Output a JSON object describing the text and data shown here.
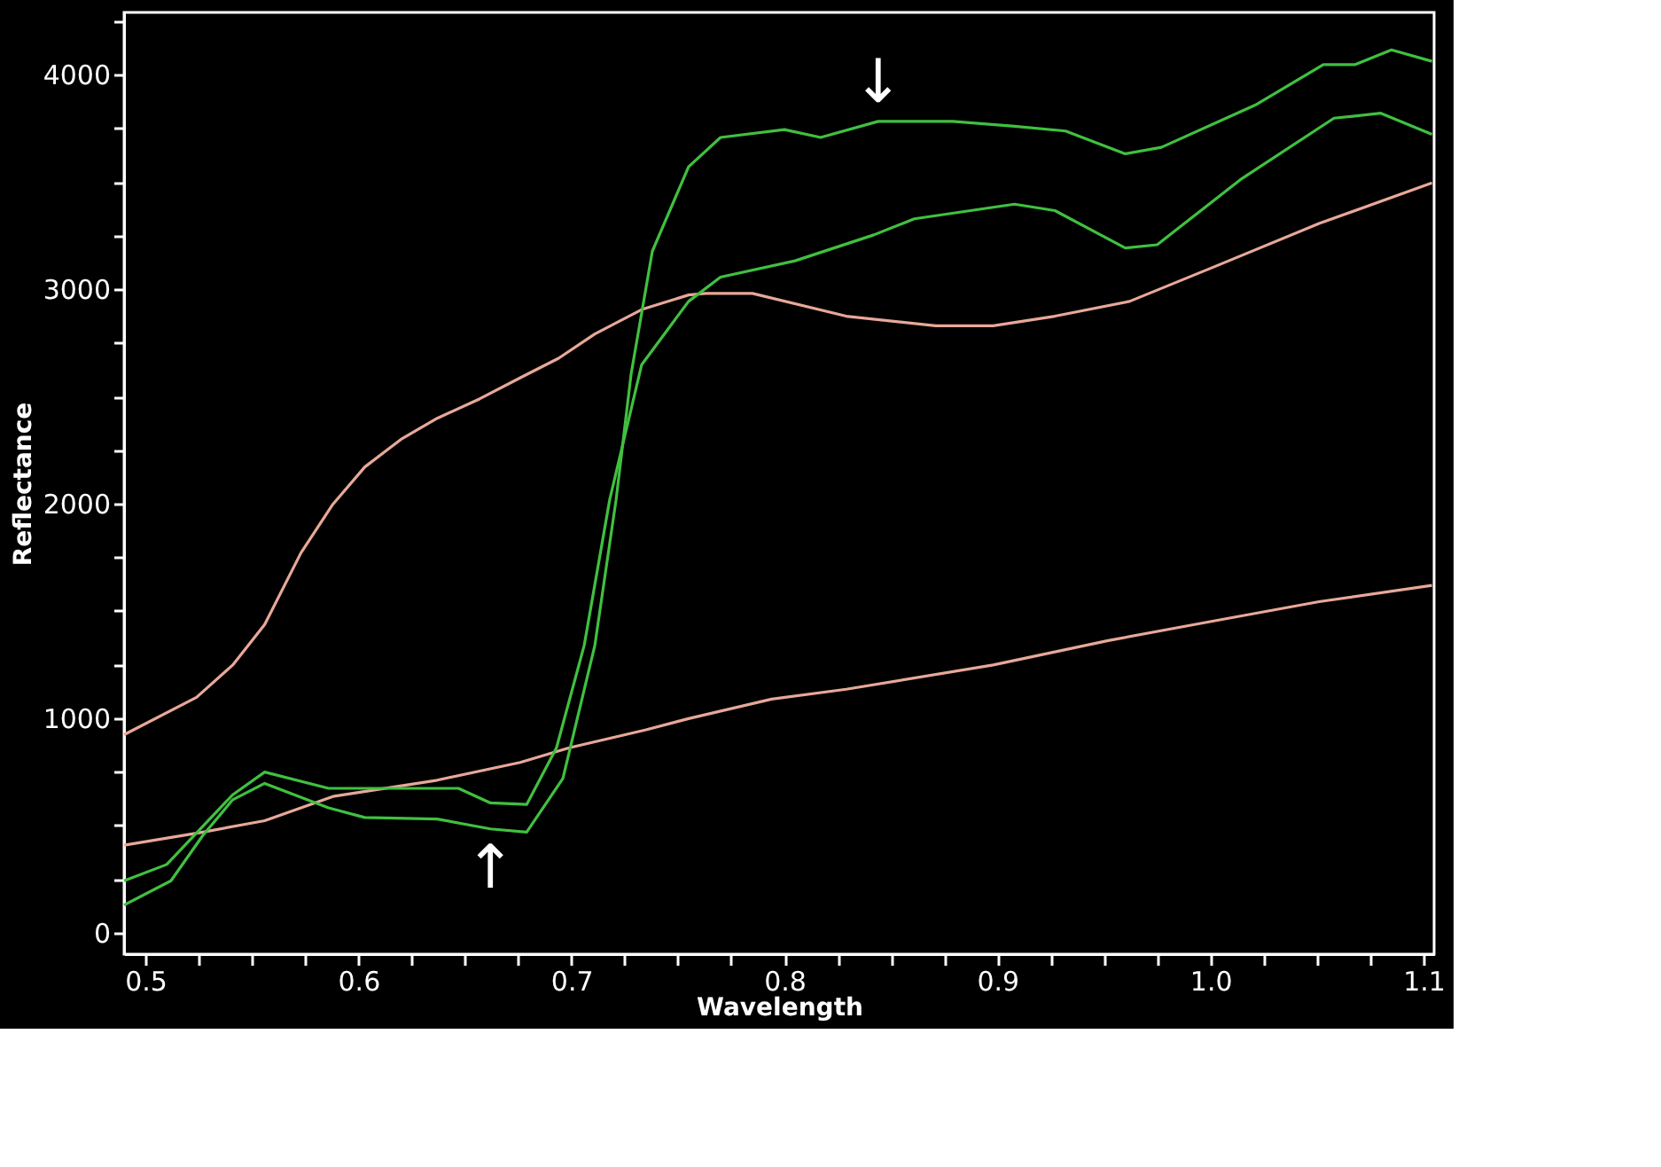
{
  "chart_data": {
    "type": "line",
    "xlabel": "Wavelength",
    "ylabel": "Reflectance",
    "xlim": [
      0.49,
      1.105
    ],
    "ylim": [
      -100,
      4290
    ],
    "xticks": [
      0.5,
      {
        "value": 0.525,
        "label": null
      },
      {
        "value": 0.55,
        "label": null
      },
      {
        "value": 0.575,
        "label": null
      },
      0.6,
      {
        "value": 0.625,
        "label": null
      },
      {
        "value": 0.65,
        "label": null
      },
      {
        "value": 0.675,
        "label": null
      },
      0.7,
      {
        "value": 0.725,
        "label": null
      },
      {
        "value": 0.75,
        "label": null
      },
      {
        "value": 0.775,
        "label": null
      },
      0.8,
      {
        "value": 0.825,
        "label": null
      },
      {
        "value": 0.85,
        "label": null
      },
      {
        "value": 0.875,
        "label": null
      },
      0.9,
      {
        "value": 0.925,
        "label": null
      },
      {
        "value": 0.95,
        "label": null
      },
      {
        "value": 0.975,
        "label": null
      },
      {
        "value": 1.0,
        "label": "1.0"
      },
      {
        "value": 1.025,
        "label": null
      },
      {
        "value": 1.05,
        "label": null
      },
      {
        "value": 1.075,
        "label": null
      },
      1.1
    ],
    "yticks": [
      0,
      {
        "value": 250,
        "label": null
      },
      {
        "value": 500,
        "label": null
      },
      {
        "value": 750,
        "label": null
      },
      1000,
      {
        "value": 1250,
        "label": null
      },
      {
        "value": 1500,
        "label": null
      },
      {
        "value": 1750,
        "label": null
      },
      2000,
      {
        "value": 2250,
        "label": null
      },
      {
        "value": 2500,
        "label": null
      },
      {
        "value": 2750,
        "label": null
      },
      3000,
      {
        "value": 3250,
        "label": null
      },
      {
        "value": 3500,
        "label": null
      },
      {
        "value": 3750,
        "label": null
      },
      4000,
      {
        "value": 4250,
        "label": null
      }
    ],
    "grid": false,
    "marker": "none",
    "line_style": "solid",
    "annotations": [
      {
        "text": "↓",
        "x": 0.844,
        "y": 3782
      },
      {
        "text": "↑",
        "x": 0.662,
        "y": 484
      }
    ],
    "series": [
      {
        "color": "#e8a898",
        "x": [
          0.49,
          0.524,
          0.541,
          0.556,
          0.573,
          0.588,
          0.603,
          0.62,
          0.637,
          0.657,
          0.676,
          0.694,
          0.711,
          0.733,
          0.755,
          0.763,
          0.785,
          0.829,
          0.871,
          0.898,
          0.927,
          0.962,
          1.001,
          1.051,
          1.104
        ],
        "values": [
          923,
          1097,
          1248,
          1437,
          1770,
          1997,
          2171,
          2300,
          2398,
          2489,
          2587,
          2678,
          2791,
          2905,
          2973,
          2980,
          2980,
          2874,
          2829,
          2829,
          2874,
          2943,
          3101,
          3306,
          3495
        ]
      },
      {
        "color": "#e8a898",
        "x": [
          0.49,
          0.527,
          0.556,
          0.588,
          0.637,
          0.676,
          0.699,
          0.735,
          0.755,
          0.794,
          0.829,
          0.898,
          0.952,
          1.001,
          1.051,
          1.104
        ],
        "values": [
          408,
          469,
          522,
          635,
          711,
          794,
          862,
          946,
          998,
          1089,
          1135,
          1248,
          1362,
          1452,
          1543,
          1619
        ]
      },
      {
        "color": "#40c040",
        "x": [
          0.49,
          0.512,
          0.527,
          0.541,
          0.556,
          0.586,
          0.603,
          0.637,
          0.662,
          0.679,
          0.696,
          0.711,
          0.721,
          0.728,
          0.738,
          0.755,
          0.77,
          0.8,
          0.817,
          0.844,
          0.879,
          0.908,
          0.932,
          0.96,
          0.977,
          1.021,
          1.053,
          1.068,
          1.085,
          1.104
        ],
        "values": [
          129,
          242,
          454,
          620,
          696,
          582,
          537,
          530,
          484,
          469,
          719,
          1339,
          2020,
          2602,
          3177,
          3570,
          3707,
          3744,
          3707,
          3782,
          3782,
          3759,
          3737,
          3631,
          3661,
          3858,
          4047,
          4047,
          4115,
          4062
        ]
      },
      {
        "color": "#40c040",
        "x": [
          0.49,
          0.51,
          0.541,
          0.556,
          0.586,
          0.647,
          0.662,
          0.679,
          0.693,
          0.706,
          0.718,
          0.733,
          0.755,
          0.77,
          0.805,
          0.842,
          0.861,
          0.908,
          0.927,
          0.96,
          0.975,
          1.014,
          1.058,
          1.08,
          1.104
        ],
        "values": [
          242,
          318,
          643,
          749,
          673,
          673,
          605,
          598,
          862,
          1339,
          2020,
          2648,
          2943,
          3056,
          3132,
          3253,
          3328,
          3396,
          3366,
          3192,
          3207,
          3510,
          3797,
          3820,
          3722
        ]
      }
    ]
  }
}
